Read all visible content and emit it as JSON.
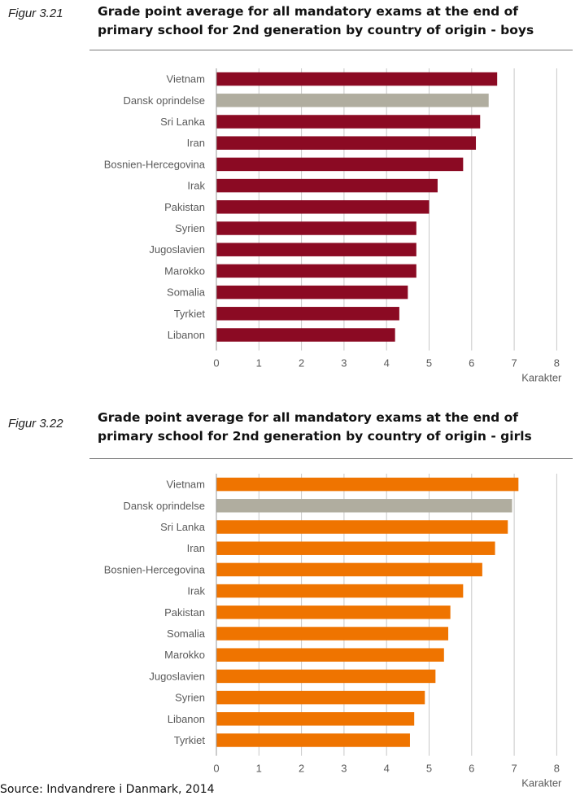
{
  "figures": [
    {
      "label": "Figur 3.21",
      "title_line1": "Grade point average for all mandatory exams at the end of",
      "title_line2": "primary school for 2nd generation by country of origin - boys"
    },
    {
      "label": "Figur 3.22",
      "title_line1": "Grade point average for all mandatory exams at the end of",
      "title_line2": "primary school for 2nd generation by country of origin - girls"
    }
  ],
  "source": "Source: Indvandrere i Danmark, 2014",
  "colors": {
    "boys": "#8b0a23",
    "girls": "#ef7400",
    "reference": "#b0ad9f",
    "grid": "#c8c8c8",
    "axis": "#9a9a9a",
    "text": "#5a5a5a"
  },
  "chart_data": [
    {
      "type": "bar",
      "orientation": "horizontal",
      "title": "Grade point average for all mandatory exams at the end of primary school for 2nd generation by country of origin - boys",
      "categories": [
        "Vietnam",
        "Dansk oprindelse",
        "Sri Lanka",
        "Iran",
        "Bosnien-Hercegovina",
        "Irak",
        "Pakistan",
        "Syrien",
        "Jugoslavien",
        "Marokko",
        "Somalia",
        "Tyrkiet",
        "Libanon"
      ],
      "values": [
        6.6,
        6.4,
        6.2,
        6.1,
        5.8,
        5.2,
        5.0,
        4.7,
        4.7,
        4.7,
        4.5,
        4.3,
        4.2
      ],
      "highlight": "Dansk oprindelse",
      "xlabel": "Karakter",
      "xticks": [
        0,
        1,
        2,
        3,
        4,
        5,
        6,
        7,
        8
      ],
      "xlim": [
        0,
        8
      ],
      "grid": "vertical"
    },
    {
      "type": "bar",
      "orientation": "horizontal",
      "title": "Grade point average for all mandatory exams at the end of primary school for 2nd generation by country of origin - girls",
      "categories": [
        "Vietnam",
        "Dansk oprindelse",
        "Sri Lanka",
        "Iran",
        "Bosnien-Hercegovina",
        "Irak",
        "Pakistan",
        "Somalia",
        "Marokko",
        "Jugoslavien",
        "Syrien",
        "Libanon",
        "Tyrkiet"
      ],
      "values": [
        7.1,
        6.95,
        6.85,
        6.55,
        6.25,
        5.8,
        5.5,
        5.45,
        5.35,
        5.15,
        4.9,
        4.65,
        4.55
      ],
      "highlight": "Dansk oprindelse",
      "xlabel": "Karakter",
      "xticks": [
        0,
        1,
        2,
        3,
        4,
        5,
        6,
        7,
        8
      ],
      "xlim": [
        0,
        8
      ],
      "grid": "vertical"
    }
  ]
}
